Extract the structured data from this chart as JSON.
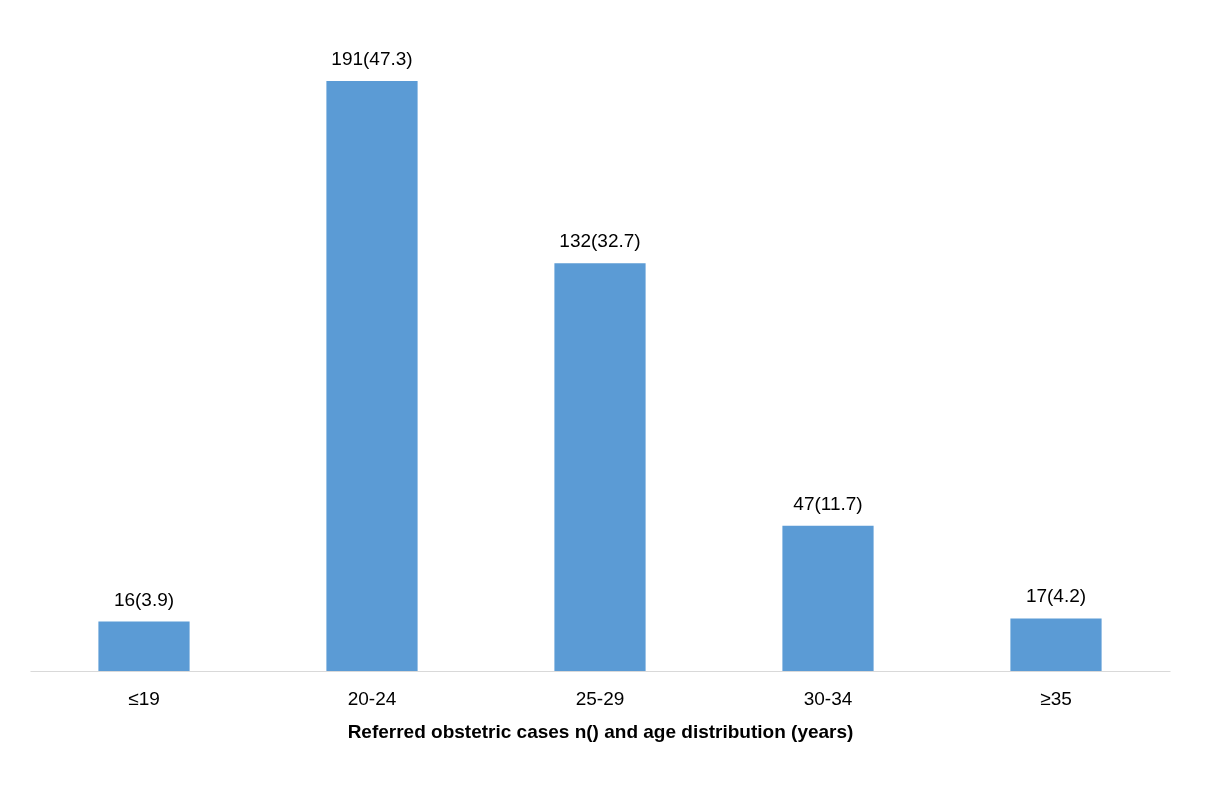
{
  "chart_data": {
    "type": "bar",
    "xlabel": "Referred obstetric cases n() and age distribution (years)",
    "categories": [
      "≤19",
      "20-24",
      "25-29",
      "30-34",
      "≥35"
    ],
    "values": [
      16,
      191,
      132,
      47,
      17
    ],
    "value_labels": [
      "16(3.9)",
      "191(47.3)",
      "132(32.7)",
      "47(11.7)",
      "17(4.2)"
    ],
    "color": "#5b9bd5",
    "tick_labels": "x"
  }
}
